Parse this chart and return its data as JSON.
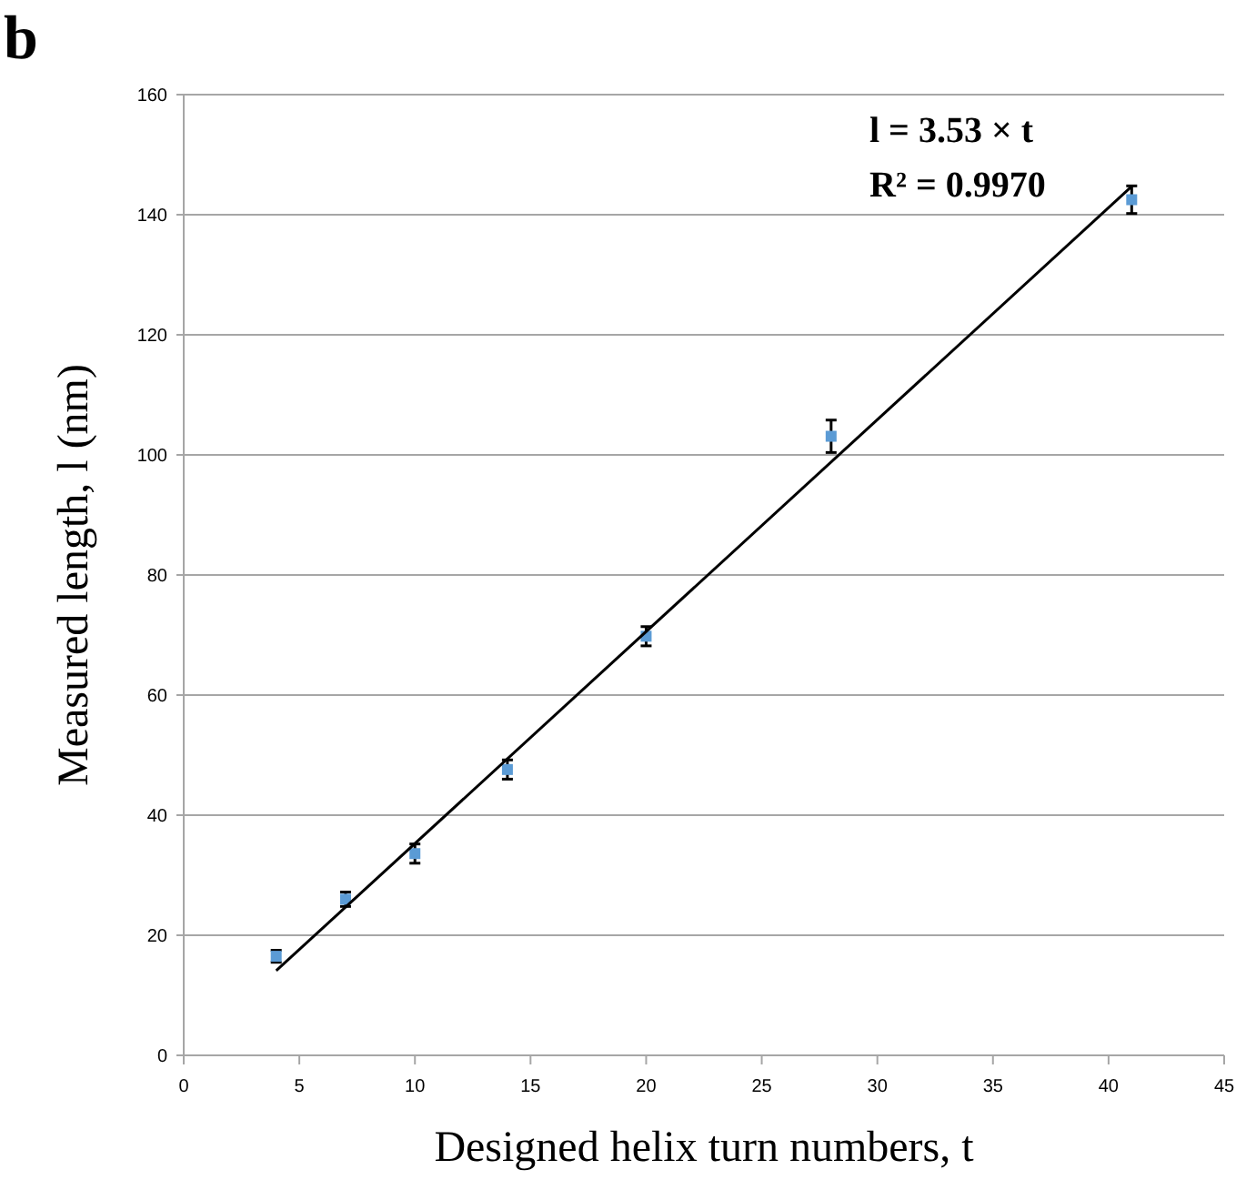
{
  "chart_data": {
    "type": "scatter",
    "title": "b",
    "xlabel": "Designed helix turn numbers, t",
    "ylabel": "Measured length, l (nm)",
    "xlim": [
      0,
      45
    ],
    "xticks": [
      0,
      5,
      10,
      15,
      20,
      25,
      30,
      35,
      40,
      45
    ],
    "ylim": [
      0,
      160
    ],
    "yticks": [
      0,
      20,
      40,
      60,
      80,
      100,
      120,
      140,
      160
    ],
    "grid": "y",
    "series": [
      {
        "marker": "square",
        "color": "#5b9bd5",
        "x": [
          4,
          7,
          10,
          14,
          20,
          28,
          41
        ],
        "values": [
          16.5,
          26,
          33.6,
          47.6,
          69.8,
          103.1,
          142.5
        ],
        "errors": [
          1,
          1.2,
          1.6,
          1.6,
          1.6,
          2.7,
          2.3
        ]
      },
      {
        "type": "line",
        "marker": "none",
        "color": "#000000",
        "x": [
          4,
          41
        ],
        "values": [
          14.1,
          144.7
        ]
      }
    ],
    "annotations": [
      "l = 3.53 × t",
      "R² = 0.9970"
    ]
  }
}
